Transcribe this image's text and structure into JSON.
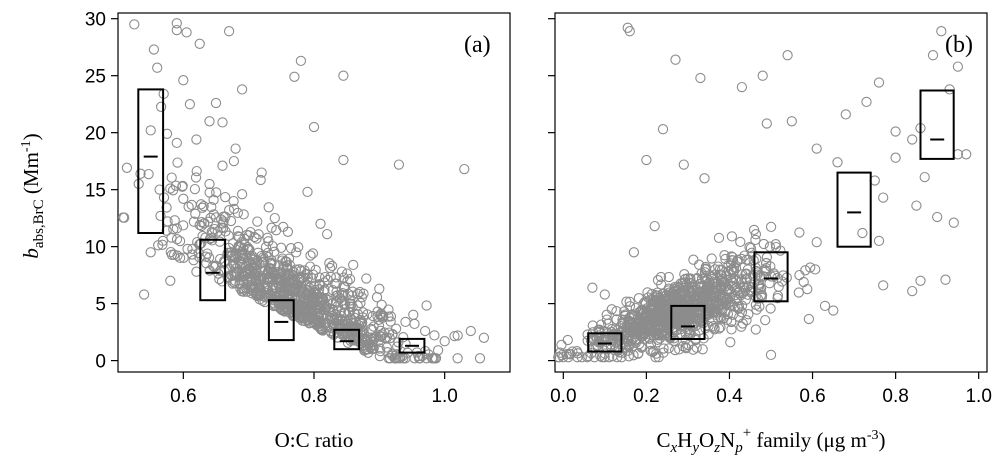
{
  "chart_data": [
    {
      "type": "scatter",
      "panel_label": "(a)",
      "xlabel": "O:C ratio",
      "ylabel_main": "b",
      "ylabel_sub": "abs,BrC",
      "ylabel_unit": " (Mm",
      "ylabel_sup": "-1",
      "ylabel_close": ")",
      "xlim": [
        0.5,
        1.1
      ],
      "ylim": [
        -1,
        30.5
      ],
      "xticks": [
        0.6,
        0.8,
        1.0
      ],
      "xticklabels": [
        "0.6",
        "0.8",
        "1.0"
      ],
      "yticks": [
        0,
        5,
        10,
        15,
        20,
        25,
        30
      ],
      "yticklabels": [
        "0",
        "5",
        "10",
        "15",
        "20",
        "25",
        "30"
      ],
      "grid": false,
      "marker_color": "#8c8c8c",
      "boxes": [
        {
          "x": 0.55,
          "width": 0.038,
          "low": 11.2,
          "high": 23.8,
          "mean": 17.9
        },
        {
          "x": 0.645,
          "width": 0.038,
          "low": 5.3,
          "high": 10.6,
          "mean": 7.7
        },
        {
          "x": 0.75,
          "width": 0.038,
          "low": 1.8,
          "high": 5.3,
          "mean": 3.4
        },
        {
          "x": 0.85,
          "width": 0.038,
          "low": 1.0,
          "high": 2.7,
          "mean": 1.7
        },
        {
          "x": 0.95,
          "width": 0.038,
          "low": 0.7,
          "high": 1.9,
          "mean": 1.3
        }
      ],
      "outliers": [
        [
          0.525,
          29.5
        ],
        [
          0.59,
          29.6
        ],
        [
          0.59,
          29.0
        ],
        [
          0.605,
          28.8
        ],
        [
          0.67,
          28.9
        ],
        [
          0.555,
          27.3
        ],
        [
          0.56,
          25.7
        ],
        [
          0.625,
          27.8
        ],
        [
          0.78,
          26.3
        ],
        [
          0.77,
          24.9
        ],
        [
          0.845,
          25.0
        ],
        [
          0.6,
          24.6
        ],
        [
          0.57,
          23.4
        ],
        [
          0.69,
          23.8
        ],
        [
          0.61,
          22.5
        ],
        [
          0.65,
          22.6
        ],
        [
          0.64,
          21.0
        ],
        [
          0.66,
          20.9
        ],
        [
          0.8,
          20.5
        ],
        [
          0.55,
          20.2
        ],
        [
          0.575,
          19.9
        ],
        [
          0.59,
          19.1
        ],
        [
          0.62,
          19.4
        ],
        [
          0.68,
          18.6
        ],
        [
          0.845,
          17.6
        ],
        [
          0.93,
          17.2
        ],
        [
          1.03,
          16.8
        ],
        [
          0.66,
          17.1
        ],
        [
          0.64,
          15.5
        ],
        [
          0.58,
          15.1
        ],
        [
          0.72,
          16.5
        ],
        [
          0.6,
          14.2
        ],
        [
          0.69,
          14.6
        ],
        [
          0.79,
          14.8
        ],
        [
          0.565,
          12.7
        ],
        [
          0.74,
          12.5
        ],
        [
          0.81,
          12.0
        ],
        [
          0.67,
          13.2
        ],
        [
          0.59,
          11.6
        ],
        [
          0.625,
          11.9
        ],
        [
          0.76,
          11.3
        ],
        [
          0.82,
          11.1
        ],
        [
          0.55,
          9.5
        ],
        [
          0.54,
          5.8
        ],
        [
          0.58,
          7.0
        ],
        [
          0.62,
          7.8
        ],
        [
          0.7,
          9.8
        ],
        [
          0.73,
          9.1
        ],
        [
          0.86,
          8.4
        ],
        [
          0.88,
          7.2
        ],
        [
          0.9,
          6.3
        ],
        [
          0.94,
          3.4
        ],
        [
          0.97,
          2.6
        ],
        [
          1.0,
          1.7
        ],
        [
          1.02,
          2.2
        ],
        [
          1.04,
          2.6
        ],
        [
          1.06,
          2.0
        ],
        [
          0.99,
          0.9
        ],
        [
          0.96,
          0.4
        ],
        [
          0.92,
          0.6
        ]
      ],
      "cluster": {
        "cx": 0.77,
        "cy": 3.2,
        "spread_x": 0.09,
        "spread_y": 2.6,
        "slope": -55,
        "n": 900
      }
    },
    {
      "type": "scatter",
      "panel_label": "(b)",
      "xlabel_parts": [
        "C",
        "x",
        "H",
        "y",
        "O",
        "z",
        "N",
        "p",
        "+",
        " family (μg m",
        "-3",
        ")"
      ],
      "xlim": [
        -0.02,
        1.02
      ],
      "ylim": [
        -1,
        30.5
      ],
      "xticks": [
        0.0,
        0.2,
        0.4,
        0.6,
        0.8,
        1.0
      ],
      "xticklabels": [
        "0.0",
        "0.2",
        "0.4",
        "0.6",
        "0.8",
        "1.0"
      ],
      "yticks": [
        0,
        5,
        10,
        15,
        20,
        25,
        30
      ],
      "grid": false,
      "marker_color": "#8c8c8c",
      "boxes": [
        {
          "x": 0.1,
          "width": 0.08,
          "low": 0.8,
          "high": 2.4,
          "mean": 1.5
        },
        {
          "x": 0.3,
          "width": 0.08,
          "low": 1.9,
          "high": 4.8,
          "mean": 3.0
        },
        {
          "x": 0.5,
          "width": 0.08,
          "low": 5.2,
          "high": 9.5,
          "mean": 7.2
        },
        {
          "x": 0.7,
          "width": 0.08,
          "low": 10.0,
          "high": 16.5,
          "mean": 13.0
        },
        {
          "x": 0.9,
          "width": 0.08,
          "low": 17.7,
          "high": 23.7,
          "mean": 19.4
        }
      ],
      "outliers": [
        [
          0.155,
          29.2
        ],
        [
          0.16,
          28.9
        ],
        [
          0.27,
          26.4
        ],
        [
          0.54,
          26.8
        ],
        [
          0.43,
          24.0
        ],
        [
          0.48,
          25.0
        ],
        [
          0.33,
          24.8
        ],
        [
          0.91,
          28.9
        ],
        [
          0.89,
          26.8
        ],
        [
          0.95,
          25.8
        ],
        [
          0.93,
          23.8
        ],
        [
          0.24,
          20.3
        ],
        [
          0.49,
          20.8
        ],
        [
          0.55,
          21.0
        ],
        [
          0.68,
          21.6
        ],
        [
          0.73,
          22.7
        ],
        [
          0.76,
          24.4
        ],
        [
          0.8,
          20.1
        ],
        [
          0.84,
          19.4
        ],
        [
          0.86,
          20.4
        ],
        [
          0.95,
          18.1
        ],
        [
          0.97,
          18.1
        ],
        [
          0.8,
          17.8
        ],
        [
          0.87,
          16.1
        ],
        [
          0.2,
          17.6
        ],
        [
          0.29,
          17.2
        ],
        [
          0.34,
          16.0
        ],
        [
          0.61,
          18.6
        ],
        [
          0.66,
          17.4
        ],
        [
          0.75,
          15.8
        ],
        [
          0.77,
          14.3
        ],
        [
          0.85,
          13.6
        ],
        [
          0.9,
          12.6
        ],
        [
          0.94,
          12.1
        ],
        [
          0.72,
          11.2
        ],
        [
          0.76,
          10.5
        ],
        [
          0.61,
          10.4
        ],
        [
          0.22,
          11.8
        ],
        [
          0.17,
          9.5
        ],
        [
          0.07,
          6.4
        ],
        [
          0.1,
          5.8
        ],
        [
          0.84,
          6.1
        ],
        [
          0.77,
          6.6
        ],
        [
          0.86,
          7.0
        ],
        [
          0.92,
          7.1
        ],
        [
          0.5,
          0.5
        ],
        [
          0.65,
          4.4
        ],
        [
          0.63,
          4.8
        ]
      ],
      "cluster": {
        "cx": 0.28,
        "cy": 3.4,
        "spread_x": 0.11,
        "spread_y": 1.8,
        "slope": 16,
        "n": 950
      }
    }
  ]
}
